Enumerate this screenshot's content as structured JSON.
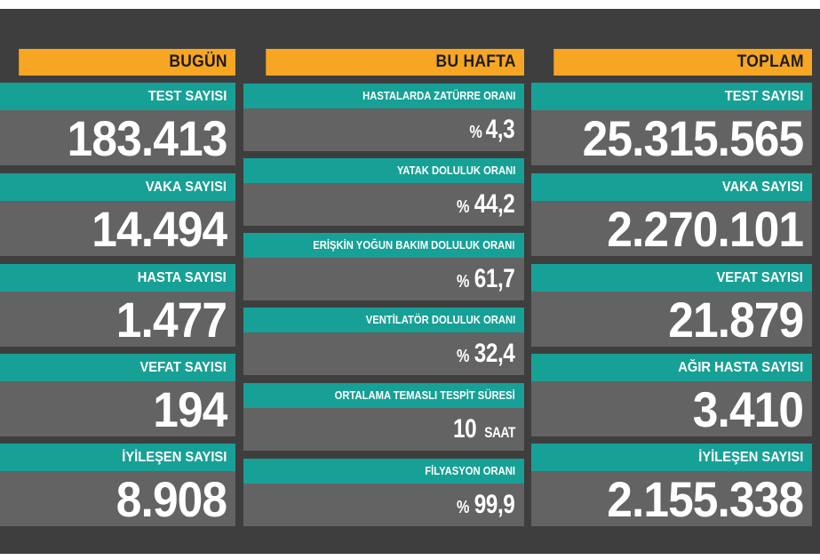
{
  "headers": {
    "today": "BUGÜN",
    "week": "BU HAFTA",
    "total": "TOPLAM"
  },
  "today": [
    {
      "label": "TEST SAYISI",
      "value": "183.413"
    },
    {
      "label": "VAKA SAYISI",
      "value": "14.494"
    },
    {
      "label": "HASTA SAYISI",
      "value": "1.477"
    },
    {
      "label": "VEFAT SAYISI",
      "value": "194"
    },
    {
      "label": "İYİLEŞEN SAYISI",
      "value": "8.908"
    }
  ],
  "week": [
    {
      "label": "HASTALARDA ZATÜRRE ORANI",
      "prefix": "%",
      "value": "4,3",
      "unit": ""
    },
    {
      "label": "YATAK DOLULUK ORANI",
      "prefix": "%",
      "value": "44,2",
      "unit": ""
    },
    {
      "label": "ERİŞKİN YOĞUN BAKIM DOLULUK ORANI",
      "prefix": "%",
      "value": "61,7",
      "unit": ""
    },
    {
      "label": "VENTİLATÖR DOLULUK ORANI",
      "prefix": "%",
      "value": "32,4",
      "unit": ""
    },
    {
      "label": "ORTALAMA TEMASLI TESPİT SÜRESİ",
      "prefix": "",
      "value": "10",
      "unit": "SAAT"
    },
    {
      "label": "FİLYASYON ORANI",
      "prefix": "%",
      "value": "99,9",
      "unit": ""
    }
  ],
  "total": [
    {
      "label": "TEST SAYISI",
      "value": "25.315.565"
    },
    {
      "label": "VAKA SAYISI",
      "value": "2.270.101"
    },
    {
      "label": "VEFAT SAYISI",
      "value": "21.879"
    },
    {
      "label": "AĞIR HASTA SAYISI",
      "value": "3.410"
    },
    {
      "label": "İYİLEŞEN SAYISI",
      "value": "2.155.338"
    }
  ],
  "colors": {
    "background": "#3e3e3e",
    "header": "#f6a623",
    "label": "#17a096",
    "value_box": "#636363"
  }
}
